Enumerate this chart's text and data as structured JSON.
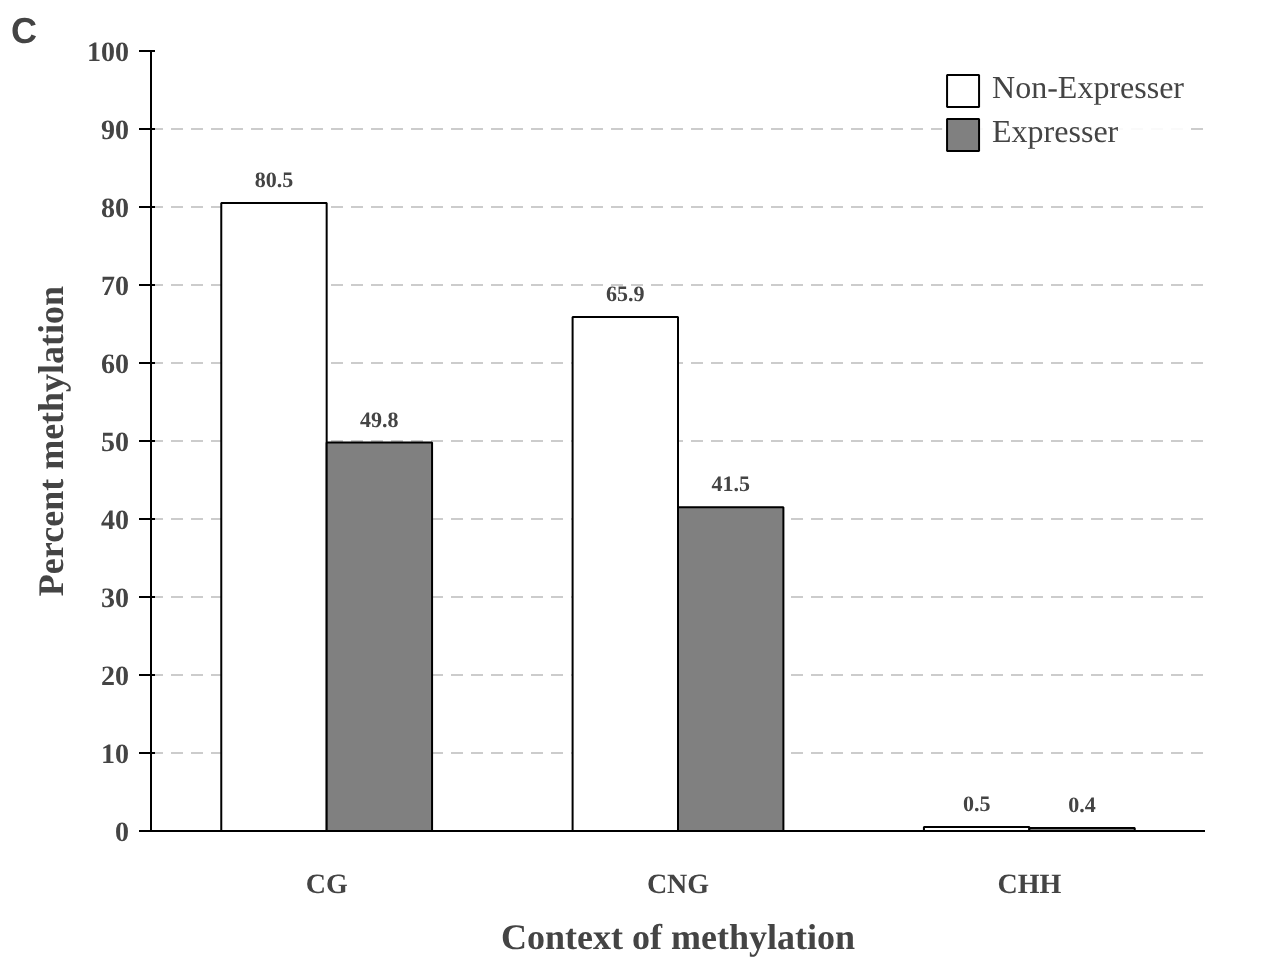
{
  "chart_data": {
    "type": "bar",
    "xlabel": "Context of methylation",
    "ylabel": "Percent methylation",
    "annotations": [
      "C"
    ],
    "categories": [
      "CG",
      "CNG",
      "CHH"
    ],
    "series": [
      {
        "name": "Non-Expresser",
        "color": "#ffffff",
        "values": [
          80.5,
          65.9,
          0.5
        ]
      },
      {
        "name": "Expresser",
        "color": "#808080",
        "values": [
          49.8,
          41.5,
          0.4
        ]
      }
    ],
    "ylim": [
      0,
      100
    ],
    "yticks": [
      0,
      10,
      20,
      30,
      40,
      50,
      60,
      70,
      80,
      90,
      100
    ],
    "grid": "y",
    "legend": "top right",
    "data_labels": true
  }
}
